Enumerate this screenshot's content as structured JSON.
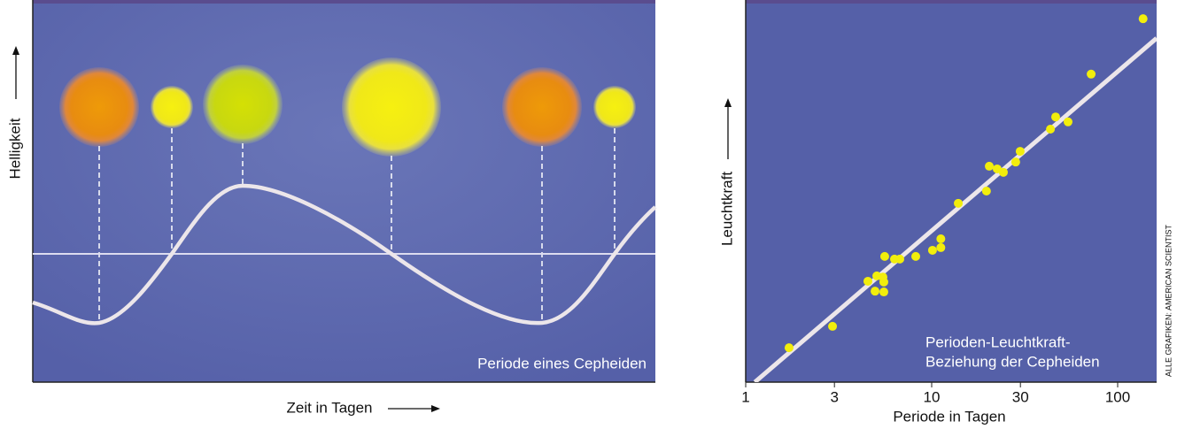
{
  "chart_data": [
    {
      "type": "diagram",
      "y_label": "Helligkeit",
      "x_label": "Zeit in Tagen",
      "annotation": "Periode eines Cepheiden"
    },
    {
      "type": "scatter",
      "x_label": "Periode in Tagen",
      "y_label": "Leuchtkraft",
      "annotation": [
        "Perioden-Leuchtkraft-",
        "Beziehung der Cepheiden"
      ],
      "log_x": true,
      "xlim": [
        1,
        162
      ],
      "ylim": [
        0,
        100
      ],
      "xticks": [
        1,
        3,
        10,
        30,
        100
      ],
      "color": "#f2ee0c",
      "x": [
        1.71,
        2.93,
        4.54,
        4.96,
        5.07,
        5.47,
        5.53,
        5.53,
        5.59,
        6.31,
        6.74,
        8.21,
        10.1,
        11.2,
        11.2,
        13.9,
        19.7,
        20.4,
        22.5,
        24.3,
        28.3,
        29.9,
        43.5,
        46.4,
        54.1,
        72.0,
        137
      ],
      "y": [
        9.0,
        14.6,
        26.4,
        23.8,
        27.8,
        27.5,
        26.2,
        23.6,
        32.9,
        32.2,
        32.2,
        32.9,
        34.5,
        37.5,
        35.2,
        46.8,
        50.0,
        56.5,
        55.8,
        54.9,
        57.6,
        60.4,
        66.2,
        69.4,
        68.1,
        80.6,
        95.1
      ],
      "trend_line": {
        "x": [
          1.12,
          162
        ],
        "y": [
          0,
          90
        ],
        "color": "#ece6ea"
      }
    }
  ],
  "credit": "ALLE GRAFIKEN: AMERICAN SCIENTIST"
}
